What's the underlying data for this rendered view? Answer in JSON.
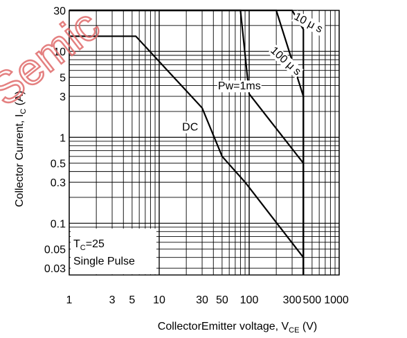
{
  "chart_data": {
    "type": "line",
    "title": "",
    "xlabel": {
      "main": "CollectorEmitter voltage, V",
      "sub": "CE",
      "unit": " (V)"
    },
    "ylabel": {
      "main": "Collector Current, I",
      "sub": "C",
      "unit": " (A)"
    },
    "xscale": "log",
    "yscale": "log",
    "xlim": [
      1,
      1000
    ],
    "ylim": [
      0.025,
      30
    ],
    "grid": true,
    "xticks": [
      {
        "v": 1,
        "t": "1"
      },
      {
        "v": 3,
        "t": "3"
      },
      {
        "v": 5,
        "t": "5"
      },
      {
        "v": 10,
        "t": "10"
      },
      {
        "v": 30,
        "t": "30"
      },
      {
        "v": 50,
        "t": "50"
      },
      {
        "v": 100,
        "t": "100"
      },
      {
        "v": 300,
        "t": "300"
      },
      {
        "v": 500,
        "t": "500"
      },
      {
        "v": 1000,
        "t": "1000"
      }
    ],
    "yticks": [
      {
        "v": 30,
        "t": "30"
      },
      {
        "v": 10,
        "t": "10"
      },
      {
        "v": 5,
        "t": "5"
      },
      {
        "v": 3,
        "t": "3"
      },
      {
        "v": 1,
        "t": "1"
      },
      {
        "v": 0.5,
        "t": "0.5"
      },
      {
        "v": 0.3,
        "t": "0.3"
      },
      {
        "v": 0.1,
        "t": "0.1"
      },
      {
        "v": 0.05,
        "t": "0.05"
      },
      {
        "v": 0.03,
        "t": "0.03"
      }
    ],
    "series": [
      {
        "name": "DC",
        "points": [
          [
            1,
            15
          ],
          [
            5.5,
            15
          ],
          [
            30,
            2.2
          ],
          [
            50,
            0.6
          ],
          [
            90,
            0.3
          ],
          [
            400,
            0.04
          ]
        ]
      },
      {
        "name": "Pw=1ms",
        "points": [
          [
            1,
            30
          ],
          [
            80,
            30
          ],
          [
            100,
            3.2
          ],
          [
            400,
            0.5
          ],
          [
            400,
            0.025
          ]
        ]
      },
      {
        "name": "100 μ s",
        "points": [
          [
            1,
            30
          ],
          [
            200,
            30
          ],
          [
            400,
            3
          ],
          [
            400,
            0.025
          ]
        ]
      },
      {
        "name": "10 μ s",
        "points": [
          [
            1,
            30
          ],
          [
            300,
            30
          ],
          [
            400,
            18
          ],
          [
            400,
            0.025
          ]
        ]
      }
    ],
    "annotations": [
      {
        "text": "DC",
        "x": 18,
        "y": 1.2
      },
      {
        "text": "Pw=1ms",
        "x": 45,
        "y": 3.6
      },
      {
        "text": "100 μ s",
        "x": 170,
        "y": 10
      },
      {
        "text": "10 μ s",
        "x": 310,
        "y": 24
      }
    ],
    "notes": {
      "condition_main": "T",
      "condition_sub": "C",
      "condition_value": "=25",
      "pulse": "Single Pulse"
    },
    "watermark": "Semic"
  }
}
